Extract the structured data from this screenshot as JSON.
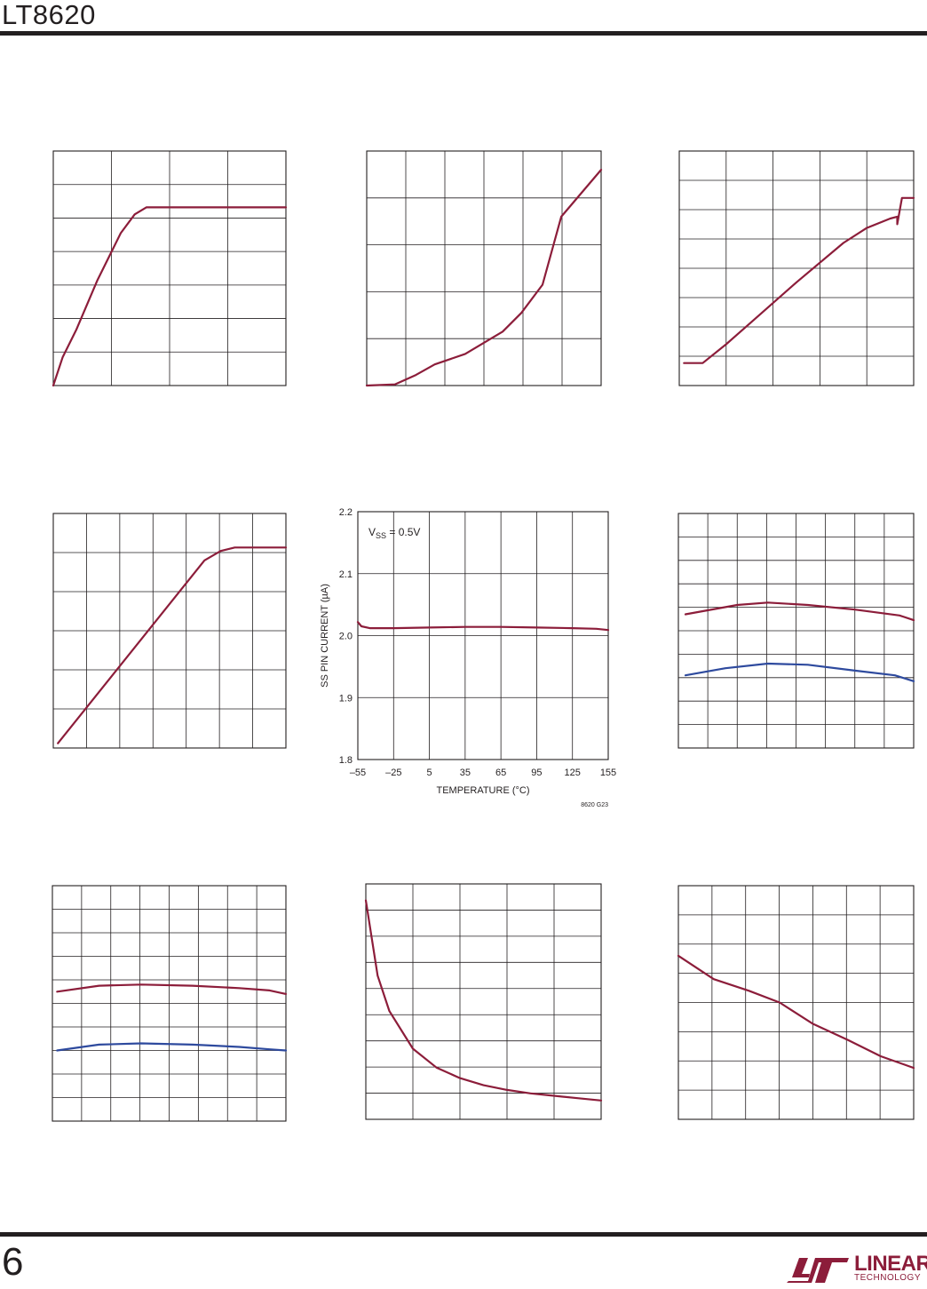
{
  "header": {
    "title": "LT8620"
  },
  "footer": {
    "page_number": "6",
    "logo_text": "LINEAR",
    "logo_subtext": "TECHNOLOGY"
  },
  "colors": {
    "red": "#8c1d3a",
    "blue": "#2e4a9e",
    "grid": "#231f20",
    "text": "#231f20"
  },
  "chart_data": [
    {
      "type": "line",
      "position": "row1-col1",
      "series": [
        {
          "name": "",
          "color": "red",
          "points": [
            [
              0,
              0
            ],
            [
              0.04,
              0.12
            ],
            [
              0.1,
              0.24
            ],
            [
              0.19,
              0.45
            ],
            [
              0.29,
              0.65
            ],
            [
              0.35,
              0.73
            ],
            [
              0.4,
              0.76
            ],
            [
              0.5,
              0.76
            ],
            [
              1,
              0.76
            ]
          ]
        }
      ],
      "xlim": [
        0,
        1
      ],
      "ylim": [
        0,
        1
      ],
      "grid": {
        "x": 4,
        "y": 7
      }
    },
    {
      "type": "line",
      "position": "row1-col2",
      "series": [
        {
          "name": "",
          "color": "red",
          "points": [
            [
              0,
              0
            ],
            [
              0.12,
              0.005
            ],
            [
              0.21,
              0.045
            ],
            [
              0.29,
              0.09
            ],
            [
              0.42,
              0.135
            ],
            [
              0.58,
              0.23
            ],
            [
              0.66,
              0.31
            ],
            [
              0.75,
              0.43
            ],
            [
              0.83,
              0.72
            ],
            [
              1,
              0.92
            ]
          ]
        }
      ],
      "xlim": [
        0,
        1
      ],
      "ylim": [
        0,
        1
      ],
      "grid": {
        "x": 6,
        "y": 5
      }
    },
    {
      "type": "line",
      "position": "row1-col3",
      "series": [
        {
          "name": "",
          "color": "red",
          "points": [
            [
              0.02,
              0.12
            ],
            [
              0.1,
              0.12
            ],
            [
              0.2,
              0.22
            ],
            [
              0.3,
              0.33
            ],
            [
              0.5,
              0.55
            ],
            [
              0.7,
              0.76
            ],
            [
              0.8,
              0.84
            ],
            [
              0.9,
              0.89
            ],
            [
              0.93,
              0.9
            ],
            [
              0.93,
              0.86
            ],
            [
              0.95,
              1.0
            ],
            [
              1,
              1.0
            ]
          ]
        }
      ],
      "xlim": [
        0,
        1
      ],
      "ylim": [
        0,
        1.25
      ],
      "grid": {
        "x": 5,
        "y": 8
      }
    },
    {
      "type": "line",
      "position": "row2-col1",
      "series": [
        {
          "name": "",
          "color": "red",
          "points": [
            [
              0.02,
              0.02
            ],
            [
              0.65,
              0.8
            ],
            [
              0.72,
              0.84
            ],
            [
              0.78,
              0.855
            ],
            [
              1,
              0.855
            ]
          ]
        }
      ],
      "xlim": [
        0,
        1
      ],
      "ylim": [
        0,
        1
      ],
      "grid": {
        "x": 7,
        "y": 6
      }
    },
    {
      "type": "line",
      "position": "row2-col2",
      "xlabel": "TEMPERATURE (°C)",
      "ylabel": "SS PIN CURRENT (µA)",
      "annotation": "V",
      "annotation_sub": "SS",
      "annotation_rest": " = 0.5V",
      "code": "8620 G23",
      "xlim": [
        -55,
        155
      ],
      "ylim": [
        1.8,
        2.2
      ],
      "x_ticks": [
        "–55",
        "–25",
        "5",
        "35",
        "65",
        "95",
        "125",
        "155"
      ],
      "x_tick_values": [
        -55,
        -25,
        5,
        35,
        65,
        95,
        125,
        155
      ],
      "y_ticks": [
        "1.8",
        "1.9",
        "2.0",
        "2.1",
        "2.2"
      ],
      "y_tick_values": [
        1.8,
        1.9,
        2.0,
        2.1,
        2.2
      ],
      "series": [
        {
          "name": "",
          "color": "red",
          "points": [
            [
              -55,
              2.022
            ],
            [
              -52,
              2.015
            ],
            [
              -45,
              2.012
            ],
            [
              -25,
              2.012
            ],
            [
              5,
              2.013
            ],
            [
              35,
              2.014
            ],
            [
              65,
              2.014
            ],
            [
              95,
              2.013
            ],
            [
              125,
              2.012
            ],
            [
              145,
              2.011
            ],
            [
              155,
              2.009
            ]
          ]
        }
      ],
      "grid": {
        "x": 7,
        "y": 4
      }
    },
    {
      "type": "line",
      "position": "row2-col3",
      "series": [
        {
          "name": "",
          "color": "red",
          "points": [
            [
              0.03,
              0.57
            ],
            [
              0.25,
              0.61
            ],
            [
              0.38,
              0.62
            ],
            [
              0.55,
              0.61
            ],
            [
              0.75,
              0.59
            ],
            [
              0.94,
              0.565
            ],
            [
              1,
              0.545
            ]
          ]
        },
        {
          "name": "",
          "color": "blue",
          "points": [
            [
              0.03,
              0.31
            ],
            [
              0.2,
              0.34
            ],
            [
              0.38,
              0.36
            ],
            [
              0.55,
              0.355
            ],
            [
              0.75,
              0.33
            ],
            [
              0.92,
              0.31
            ],
            [
              1,
              0.285
            ]
          ]
        }
      ],
      "xlim": [
        0,
        1
      ],
      "ylim": [
        0,
        1
      ],
      "grid": {
        "x": 8,
        "y": 10
      }
    },
    {
      "type": "line",
      "position": "row3-col1",
      "series": [
        {
          "name": "",
          "color": "red",
          "points": [
            [
              0.02,
              0.55
            ],
            [
              0.2,
              0.575
            ],
            [
              0.38,
              0.58
            ],
            [
              0.6,
              0.575
            ],
            [
              0.8,
              0.565
            ],
            [
              0.93,
              0.555
            ],
            [
              1,
              0.54
            ]
          ]
        },
        {
          "name": "",
          "color": "blue",
          "points": [
            [
              0.02,
              0.3
            ],
            [
              0.2,
              0.325
            ],
            [
              0.38,
              0.33
            ],
            [
              0.6,
              0.325
            ],
            [
              0.8,
              0.315
            ],
            [
              0.93,
              0.305
            ],
            [
              1,
              0.3
            ]
          ]
        }
      ],
      "xlim": [
        0,
        1
      ],
      "ylim": [
        0,
        1
      ],
      "grid": {
        "x": 8,
        "y": 10
      }
    },
    {
      "type": "line",
      "position": "row3-col2",
      "series": [
        {
          "name": "",
          "color": "red",
          "points": [
            [
              0.0,
              0.93
            ],
            [
              0.05,
              0.61
            ],
            [
              0.1,
              0.46
            ],
            [
              0.2,
              0.3
            ],
            [
              0.3,
              0.22
            ],
            [
              0.4,
              0.175
            ],
            [
              0.5,
              0.145
            ],
            [
              0.6,
              0.125
            ],
            [
              0.7,
              0.11
            ],
            [
              0.8,
              0.1
            ],
            [
              0.9,
              0.09
            ],
            [
              1,
              0.08
            ]
          ]
        }
      ],
      "xlim": [
        0,
        1
      ],
      "ylim": [
        0,
        1
      ],
      "grid": {
        "x": 5,
        "y": 9
      }
    },
    {
      "type": "line",
      "position": "row3-col3",
      "series": [
        {
          "name": "",
          "color": "red",
          "points": [
            [
              0,
              0.7
            ],
            [
              0.15,
              0.6
            ],
            [
              0.3,
              0.55
            ],
            [
              0.43,
              0.5
            ],
            [
              0.57,
              0.41
            ],
            [
              0.72,
              0.34
            ],
            [
              0.86,
              0.27
            ],
            [
              1,
              0.22
            ]
          ]
        }
      ],
      "xlim": [
        0,
        1
      ],
      "ylim": [
        0,
        1
      ],
      "grid": {
        "x": 7,
        "y": 8
      }
    }
  ]
}
